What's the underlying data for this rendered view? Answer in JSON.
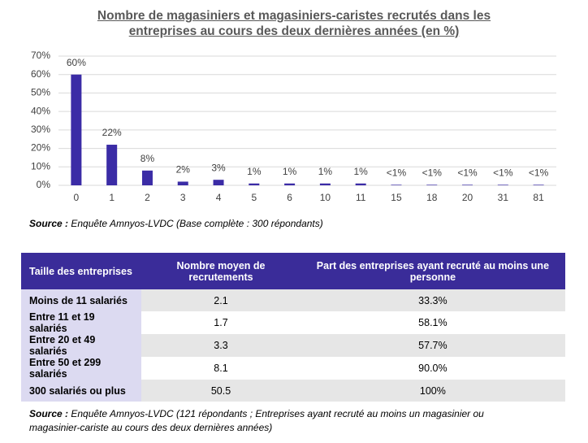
{
  "chart_data": {
    "type": "bar",
    "title": "Nombre de magasiniers et magasiniers-caristes recrutés dans les entreprises au cours des deux dernières années (en %)",
    "categories": [
      "0",
      "1",
      "2",
      "3",
      "4",
      "5",
      "6",
      "10",
      "11",
      "15",
      "18",
      "20",
      "31",
      "81"
    ],
    "values": [
      60,
      22,
      8,
      2,
      3,
      1,
      1,
      1,
      1,
      0.3,
      0.3,
      0.3,
      0.3,
      0.3
    ],
    "value_labels": [
      "60%",
      "22%",
      "8%",
      "2%",
      "3%",
      "1%",
      "1%",
      "1%",
      "1%",
      "<1%",
      "<1%",
      "<1%",
      "<1%",
      "<1%"
    ],
    "color": "#3b2ca6",
    "ylim": [
      0,
      70
    ],
    "yticks": [
      {
        "value": 0,
        "label": "0%"
      },
      {
        "value": 10,
        "label": "10%"
      },
      {
        "value": 20,
        "label": "20%"
      },
      {
        "value": 30,
        "label": "30%"
      },
      {
        "value": 40,
        "label": "40%"
      },
      {
        "value": 50,
        "label": "50%"
      },
      {
        "value": 60,
        "label": "60%"
      },
      {
        "value": 70,
        "label": "70%"
      }
    ],
    "grid": true
  },
  "chart_source": {
    "label": "Source :",
    "text": "Enquête Amnyos-LVDC (Base complète : 300 répondants)"
  },
  "table": {
    "header": [
      "Taille des entreprises",
      "Nombre moyen de recrutements",
      "Part des entreprises ayant recruté au moins une personne"
    ],
    "rows": [
      [
        "Moins de 11 salariés",
        "2.1",
        "33.3%"
      ],
      [
        "Entre 11 et 19 salariés",
        "1.7",
        "58.1%"
      ],
      [
        "Entre 20 et 49 salariés",
        "3.3",
        "57.7%"
      ],
      [
        "Entre 50 et 299 salariés",
        "8.1",
        "90.0%"
      ],
      [
        "300 salariés ou plus",
        "50.5",
        "100%"
      ]
    ]
  },
  "table_source": {
    "label": "Source :",
    "text": "Enquête Amnyos-LVDC (121 répondants ; Entreprises ayant recruté au moins un magasinier ou magasinier-cariste au cours des deux dernières années)"
  }
}
